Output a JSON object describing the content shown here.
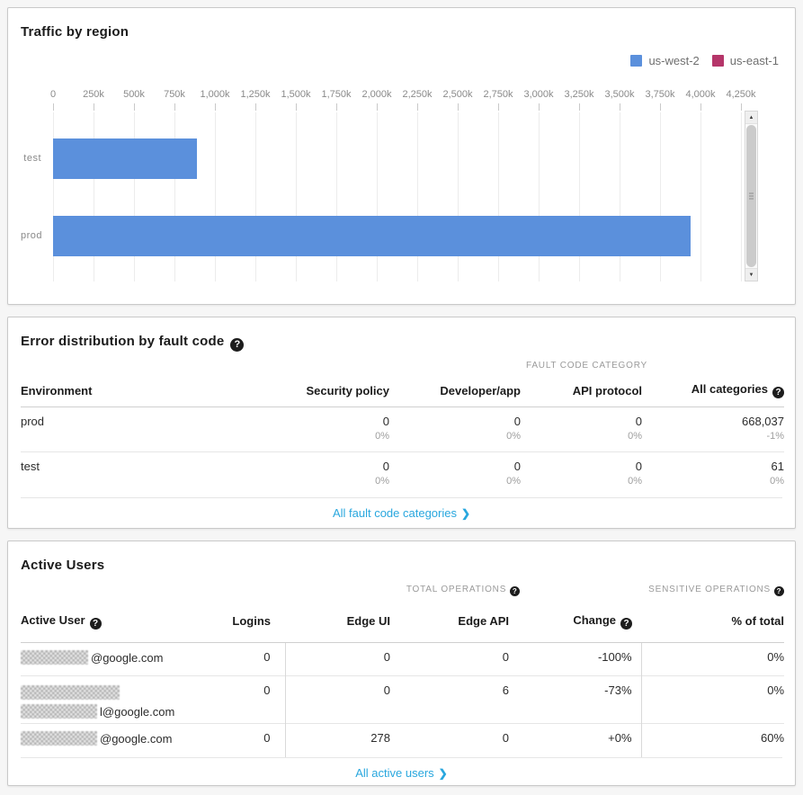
{
  "colors": {
    "link_accent": "#29a7de",
    "bar_blue": "#5b90dc",
    "legend_crimson": "#b53569"
  },
  "traffic_panel": {
    "title": "Traffic by region",
    "legend": [
      {
        "label": "us-west-2",
        "color": "#5b90dc"
      },
      {
        "label": "us-east-1",
        "color": "#b53569"
      }
    ]
  },
  "chart_data": {
    "type": "bar",
    "orientation": "horizontal",
    "title": "Traffic by region",
    "categories": [
      "test",
      "prod"
    ],
    "series": [
      {
        "name": "us-west-2",
        "color": "#5b90dc",
        "values": [
          890000,
          3940000
        ]
      },
      {
        "name": "us-east-1",
        "color": "#b53569",
        "values": [
          0,
          0
        ]
      }
    ],
    "x_tick_labels": [
      "0",
      "250k",
      "500k",
      "750k",
      "1,000k",
      "1,250k",
      "1,500k",
      "1,750k",
      "2,000k",
      "2,250k",
      "2,500k",
      "2,750k",
      "3,000k",
      "3,250k",
      "3,500k",
      "3,750k",
      "4,000k",
      "4,250k"
    ],
    "x_tick_values": [
      0,
      250000,
      500000,
      750000,
      1000000,
      1250000,
      1500000,
      1750000,
      2000000,
      2250000,
      2500000,
      2750000,
      3000000,
      3250000,
      3500000,
      3750000,
      4000000,
      4250000
    ],
    "xlim": [
      0,
      4250000
    ],
    "grid": true,
    "legend_position": "top-right"
  },
  "error_panel": {
    "title": "Error distribution by fault code",
    "group_header": "FAULT CODE CATEGORY",
    "columns": [
      "Environment",
      "Security policy",
      "Developer/app",
      "API protocol",
      "All categories"
    ],
    "rows": [
      {
        "environment": "prod",
        "cells": [
          {
            "value": "0",
            "sub": "0%"
          },
          {
            "value": "0",
            "sub": "0%"
          },
          {
            "value": "0",
            "sub": "0%"
          },
          {
            "value": "668,037",
            "sub": "-1%"
          }
        ]
      },
      {
        "environment": "test",
        "cells": [
          {
            "value": "0",
            "sub": "0%"
          },
          {
            "value": "0",
            "sub": "0%"
          },
          {
            "value": "0",
            "sub": "0%"
          },
          {
            "value": "61",
            "sub": "0%"
          }
        ]
      }
    ],
    "footer_link": "All fault code categories"
  },
  "users_panel": {
    "title": "Active Users",
    "group_header_total": "TOTAL OPERATIONS",
    "group_header_sensitive": "SENSITIVE OPERATIONS",
    "columns": [
      "Active User",
      "Logins",
      "Edge UI",
      "Edge API",
      "Change",
      "% of total"
    ],
    "rows": [
      {
        "user_visible": "@google.com",
        "redacted": true,
        "wrapped": false,
        "logins": "0",
        "edge_ui": "0",
        "edge_api": "0",
        "change": "-100%",
        "pct_of_total": "0%"
      },
      {
        "user_visible": "l@google.com",
        "redacted": true,
        "wrapped": true,
        "logins": "0",
        "edge_ui": "0",
        "edge_api": "6",
        "change": "-73%",
        "pct_of_total": "0%"
      },
      {
        "user_visible": "@google.com",
        "redacted": true,
        "wrapped": false,
        "logins": "0",
        "edge_ui": "278",
        "edge_api": "0",
        "change": "+0%",
        "pct_of_total": "60%"
      }
    ],
    "footer_link": "All active users"
  }
}
